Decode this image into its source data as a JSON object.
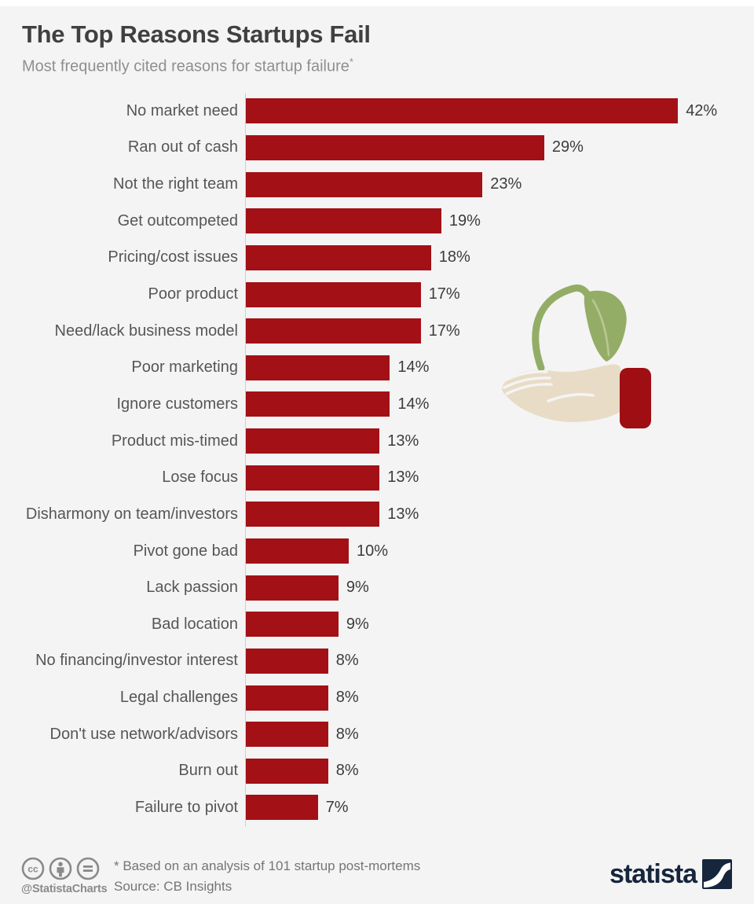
{
  "header": {
    "title": "The Top Reasons Startups Fail",
    "subtitle": "Most frequently cited reasons for startup failure",
    "subtitle_mark": "*"
  },
  "chart_data": {
    "type": "bar",
    "orientation": "horizontal",
    "title": "The Top Reasons Startups Fail",
    "categories": [
      "No market need",
      "Ran out of cash",
      "Not the right team",
      "Get outcompeted",
      "Pricing/cost issues",
      "Poor product",
      "Need/lack business model",
      "Poor marketing",
      "Ignore customers",
      "Product mis-timed",
      "Lose focus",
      "Disharmony on team/investors",
      "Pivot gone bad",
      "Lack passion",
      "Bad location",
      "No financing/investor interest",
      "Legal challenges",
      "Don't use network/advisors",
      "Burn out",
      "Failure to pivot"
    ],
    "values": [
      42,
      29,
      23,
      19,
      18,
      17,
      17,
      14,
      14,
      13,
      13,
      13,
      10,
      9,
      9,
      8,
      8,
      8,
      8,
      7
    ],
    "unit": "%",
    "xlim": [
      0,
      45
    ],
    "grid": false,
    "legend": false,
    "bar_color": "#a31016",
    "value_label_color": "#3c3c3c",
    "category_label_color": "#565656"
  },
  "illustration": {
    "name": "hand-holding-seedling",
    "leaf_color": "#94ad66",
    "vein_color": "#b9c795",
    "hand_color": "#e8dcc6",
    "cuff_color": "#9e0e13"
  },
  "footer": {
    "license_icons": [
      "cc-icon",
      "attribution-icon",
      "no-derivatives-icon"
    ],
    "handle": "@StatistaCharts",
    "footnote": "* Based on an analysis of 101 startup post-mortems",
    "source": "Source: CB Insights",
    "brand": "statista",
    "brand_color": "#16263c",
    "icon_color": "#8a8a8a"
  }
}
